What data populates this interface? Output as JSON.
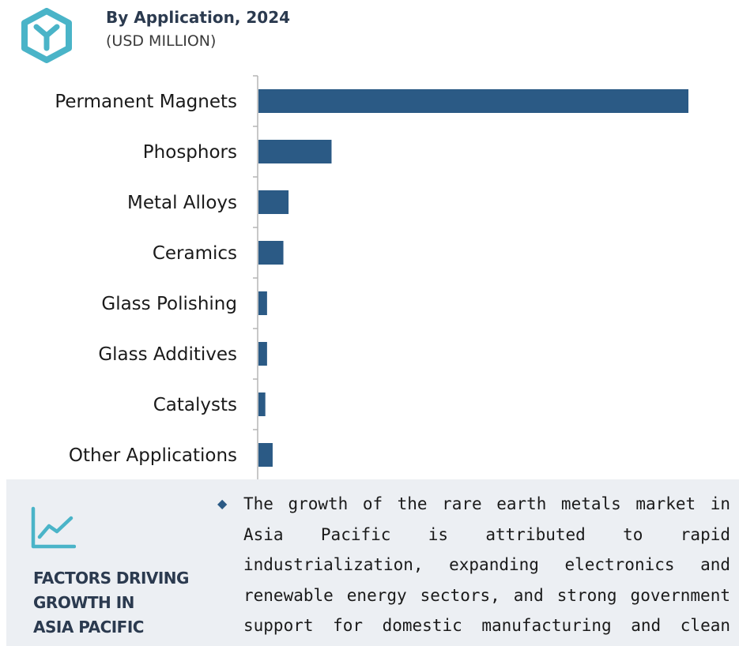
{
  "header": {
    "title": "By Application, 2024",
    "subtitle": "(USD MILLION)",
    "logo_icon": "hexagon-y-logo-icon",
    "accent_color": "#4ab4c8"
  },
  "chart_data": {
    "type": "bar",
    "orientation": "horizontal",
    "title": "By Application, 2024",
    "subtitle": "(USD MILLION)",
    "categories": [
      "Permanent Magnets",
      "Phosphors",
      "Metal Alloys",
      "Ceramics",
      "Glass Polishing",
      "Glass Additives",
      "Catalysts",
      "Other Applications"
    ],
    "values": [
      100,
      17,
      7,
      5.8,
      2,
      2,
      1.6,
      3.3
    ],
    "xlim": [
      0,
      100
    ],
    "grid": false,
    "legend": "none",
    "bar_color": "#2b5a85"
  },
  "factors": {
    "icon": "trend-line-icon",
    "heading_lines": [
      "FACTORS DRIVING",
      "GROWTH IN",
      "ASIA PACIFIC"
    ],
    "bullet_icon": "diamond-bullet-icon",
    "text": "The growth of the rare earth metals market in Asia Pacific is attributed to rapid industrialization, expanding electronics and renewable energy sectors, and strong government support for domestic manufacturing and clean energy"
  }
}
